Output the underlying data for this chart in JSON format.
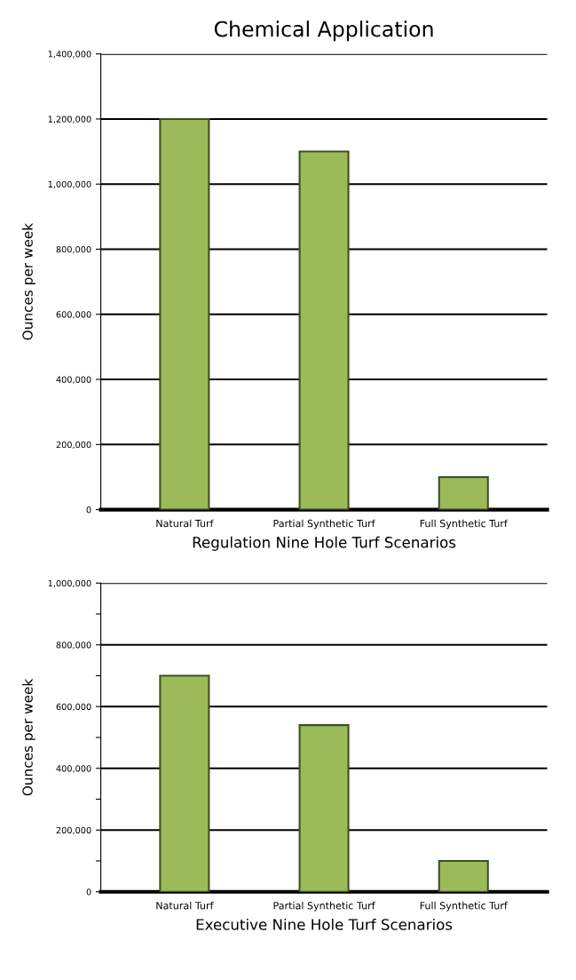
{
  "chart_data": [
    {
      "type": "bar",
      "title": "Chemical Application",
      "xlabel": "Regulation Nine Hole Turf Scenarios",
      "ylabel": "Ounces per week",
      "categories": [
        "Natural Turf",
        "Partial Synthetic Turf",
        "Full Synthetic Turf"
      ],
      "values": [
        1200000,
        1100000,
        100000
      ],
      "color": "#9bbb59",
      "ylim": [
        0,
        1400000
      ],
      "yticks": [
        {
          "value": 0,
          "label": "0"
        },
        {
          "value": 200000,
          "label": "200,000"
        },
        {
          "value": 400000,
          "label": "400,000"
        },
        {
          "value": 600000,
          "label": "600,000"
        },
        {
          "value": 800000,
          "label": "800,000"
        },
        {
          "value": 1000000,
          "label": "1,000,000"
        },
        {
          "value": 1200000,
          "label": "1,200,000"
        },
        {
          "value": 1400000,
          "label": "1,400,000"
        }
      ],
      "grid": "y"
    },
    {
      "type": "bar",
      "xlabel": "Executive Nine Hole Turf Scenarios",
      "ylabel": "Ounces per week",
      "categories": [
        "Natural Turf",
        "Partial Synthetic Turf",
        "Full Synthetic Turf"
      ],
      "values": [
        700000,
        540000,
        100000
      ],
      "color": "#9bbb59",
      "ylim": [
        0,
        1000000
      ],
      "yticks": [
        {
          "value": 0,
          "label": "0"
        },
        {
          "value": 100000,
          "label": null
        },
        {
          "value": 200000,
          "label": "200,000"
        },
        {
          "value": 300000,
          "label": null
        },
        {
          "value": 400000,
          "label": "400,000"
        },
        {
          "value": 500000,
          "label": null
        },
        {
          "value": 600000,
          "label": "600,000"
        },
        {
          "value": 700000,
          "label": null
        },
        {
          "value": 800000,
          "label": "800,000"
        },
        {
          "value": 900000,
          "label": null
        },
        {
          "value": 1000000,
          "label": "1,000,000"
        }
      ],
      "grid": "y"
    }
  ]
}
